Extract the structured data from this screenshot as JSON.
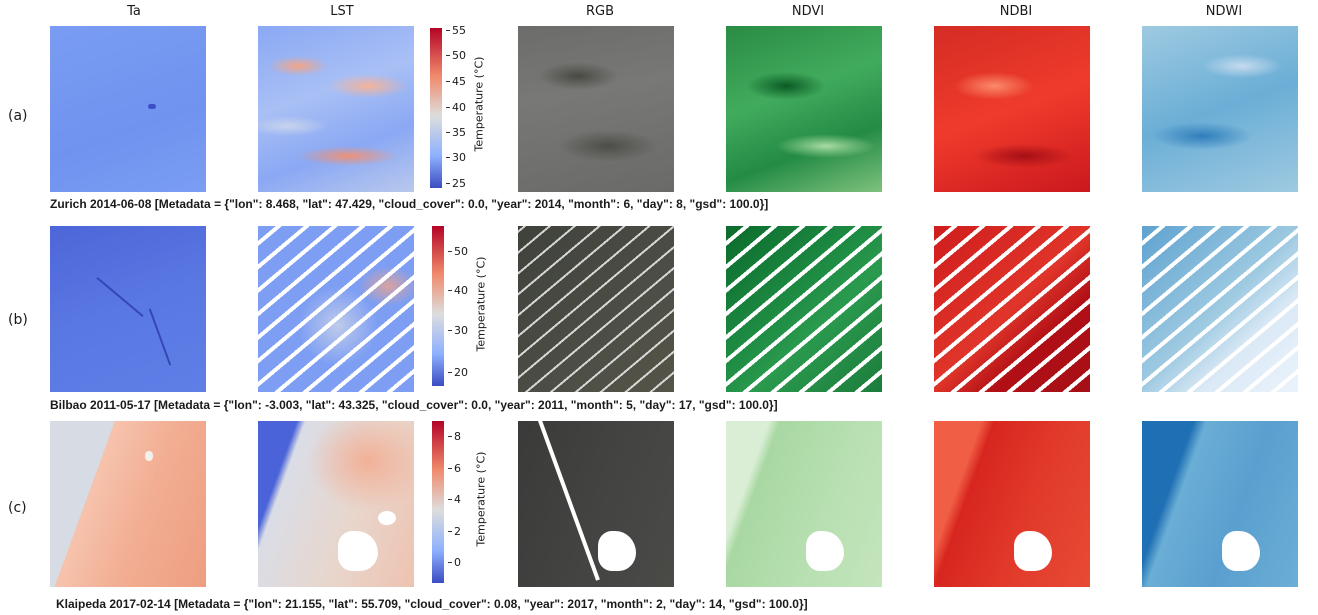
{
  "columns": [
    "Ta",
    "LST",
    "RGB",
    "NDVI",
    "NDBI",
    "NDWI"
  ],
  "rows": [
    {
      "label": "(a)",
      "caption": "Zurich 2014-06-08 [Metadata = {\"lon\": 8.468, \"lat\": 47.429, \"cloud_cover\": 0.0, \"year\": 2014, \"month\": 6, \"day\": 8, \"gsd\": 100.0}]",
      "colorbar": {
        "label": "Temperature (°C)",
        "ticks": [
          "55",
          "50",
          "45",
          "40",
          "35",
          "30",
          "25"
        ]
      }
    },
    {
      "label": "(b)",
      "caption": "Bilbao 2011-05-17 [Metadata = {\"lon\": -3.003, \"lat\": 43.325, \"cloud_cover\": 0.0, \"year\": 2011, \"month\": 5, \"day\": 17, \"gsd\": 100.0}]",
      "colorbar": {
        "label": "Temperature (°C)",
        "ticks": [
          "50",
          "40",
          "30",
          "20"
        ]
      }
    },
    {
      "label": "(c)",
      "caption": "Klaipeda 2017-02-14 [Metadata = {\"lon\": 21.155, \"lat\": 55.709, \"cloud_cover\": 0.08, \"year\": 2017, \"month\": 2, \"day\": 14, \"gsd\": 100.0}]",
      "colorbar": {
        "label": "Temperature (°C)",
        "ticks": [
          "8",
          "6",
          "4",
          "2",
          "0"
        ]
      }
    }
  ],
  "colors": {
    "coolwarm_low": "#3b4cc0",
    "coolwarm_mid": "#dddddd",
    "coolwarm_high": "#b40426",
    "greens": "#1b7a36",
    "reds": "#cb181d",
    "blues": "#2171b5",
    "rgb_gray": "#555555"
  }
}
